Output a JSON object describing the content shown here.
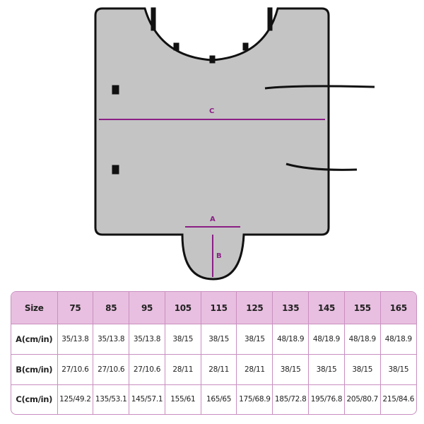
{
  "diagram": {
    "labels": {
      "a": "A",
      "b": "B",
      "c": "C"
    },
    "colors": {
      "fabric": "#c4c4c4",
      "edge": "#111111",
      "measure": "#8b1f86"
    }
  },
  "table": {
    "header": [
      "Size",
      "75",
      "85",
      "95",
      "105",
      "115",
      "125",
      "135",
      "145",
      "155",
      "165"
    ],
    "rows": [
      [
        "A(cm/in)",
        "35/13.8",
        "35/13.8",
        "35/13.8",
        "38/15",
        "38/15",
        "38/15",
        "48/18.9",
        "48/18.9",
        "48/18.9",
        "48/18.9"
      ],
      [
        "B(cm/in)",
        "27/10.6",
        "27/10.6",
        "27/10.6",
        "28/11",
        "28/11",
        "28/11",
        "38/15",
        "38/15",
        "38/15",
        "38/15"
      ],
      [
        "C(cm/in)",
        "125/49.2",
        "135/53.1",
        "145/57.1",
        "155/61",
        "165/65",
        "175/68.9",
        "185/72.8",
        "195/76.8",
        "205/80.7",
        "215/84.6"
      ]
    ],
    "header_color": "#e8bfe0",
    "border_color": "#c98fc0"
  }
}
